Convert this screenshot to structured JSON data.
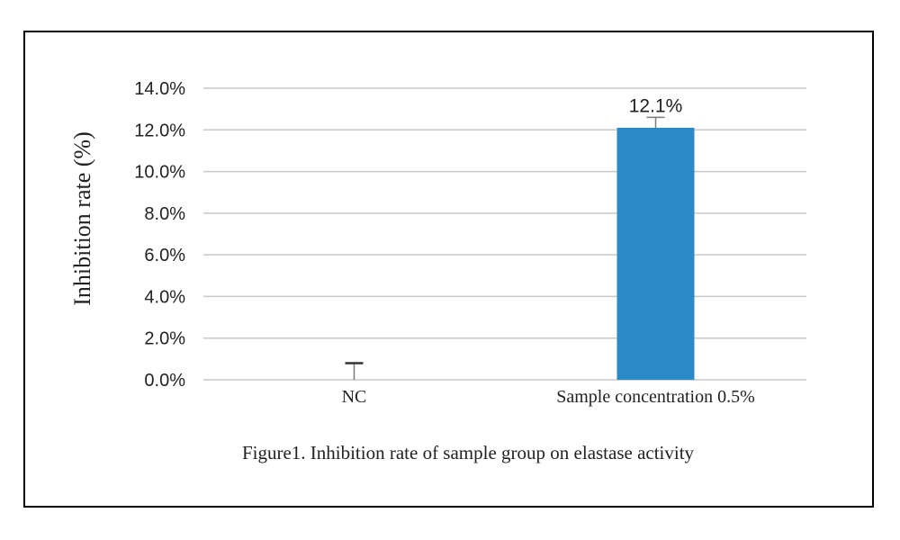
{
  "chart_data": {
    "type": "bar",
    "categories": [
      "NC",
      "Sample concentration  0.5%"
    ],
    "values": [
      0.0,
      12.1
    ],
    "error_bars": [
      0.8,
      0.5
    ],
    "data_labels": [
      "",
      "12.1%"
    ],
    "ylabel": "Inhibition rate (%)",
    "xlabel": "",
    "ylim": [
      0,
      14
    ],
    "yticks": [
      "0.0%",
      "2.0%",
      "4.0%",
      "6.0%",
      "8.0%",
      "10.0%",
      "12.0%",
      "14.0%"
    ],
    "grid": true,
    "caption": "Figure1. Inhibition  rate of sample group on elastase activity",
    "bar_color": "#2a8ac8",
    "grid_color": "#c8c8c8"
  }
}
